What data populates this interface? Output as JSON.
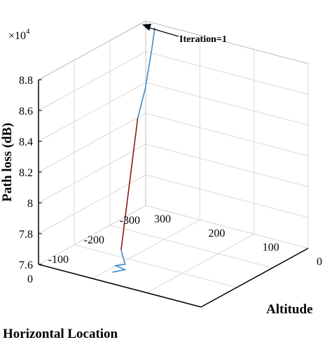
{
  "chart_data": {
    "type": "line",
    "dimensions": "3d",
    "title": "",
    "xlabel": "Horizontal Location",
    "ylabel": "Altitude",
    "zlabel": "Path loss (dB)",
    "z_exponent_label": "×10",
    "z_exponent_power": "4",
    "xlim": [
      -300,
      0
    ],
    "ylim": [
      0,
      300
    ],
    "zlim": [
      7.6,
      8.8
    ],
    "x_ticks": [
      -300,
      -200,
      -100,
      0
    ],
    "y_ticks": [
      0,
      100,
      200,
      300
    ],
    "z_ticks": [
      7.6,
      7.8,
      8.0,
      8.2,
      8.4,
      8.6,
      8.8
    ],
    "x_tick_labels": [
      "-300",
      "-200",
      "-100",
      "0"
    ],
    "y_tick_labels": [
      "0",
      "100",
      "200",
      "300"
    ],
    "z_tick_labels": [
      "7.6",
      "7.8",
      "8",
      "8.2",
      "8.4",
      "8.6",
      "8.8"
    ],
    "grid": true,
    "annotation": "Iteration=1",
    "series": [
      {
        "color": "#3a8fd0",
        "points": [
          {
            "x": -280,
            "y": 270,
            "z": 8.81
          },
          {
            "x": -275,
            "y": 272,
            "z": 8.68
          },
          {
            "x": -265,
            "y": 278,
            "z": 8.42
          },
          {
            "x": -255,
            "y": 285,
            "z": 8.24
          }
        ]
      },
      {
        "color": "#8b1a1a",
        "points": [
          {
            "x": -255,
            "y": 285,
            "z": 8.24
          },
          {
            "x": -72,
            "y": 195,
            "z": 7.7
          }
        ]
      },
      {
        "color": "#3a8fd0",
        "points": [
          {
            "x": -72,
            "y": 195,
            "z": 7.7
          },
          {
            "x": -68,
            "y": 185,
            "z": 7.62
          },
          {
            "x": -52,
            "y": 192,
            "z": 7.625
          },
          {
            "x": -60,
            "y": 180,
            "z": 7.6
          },
          {
            "x": -40,
            "y": 190,
            "z": 7.6
          }
        ]
      }
    ]
  }
}
